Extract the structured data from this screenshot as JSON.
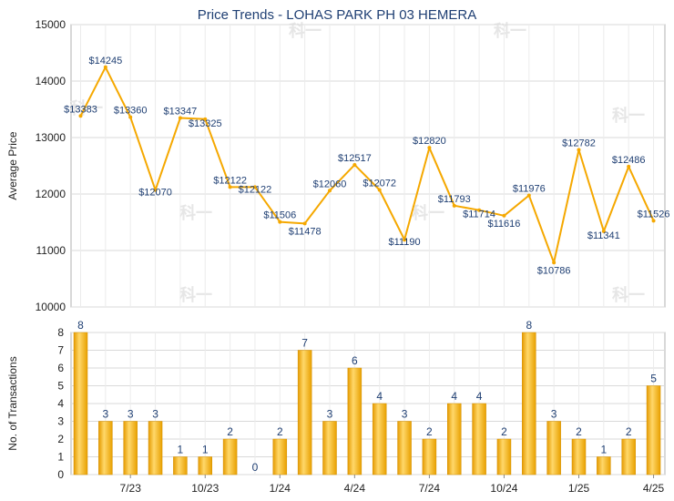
{
  "chart_data": [
    {
      "type": "line",
      "title": "Price Trends - LOHAS PARK PH 03 HEMERA",
      "ylabel": "Average Price",
      "ylim": [
        10000,
        15000
      ],
      "yticks": [
        10000,
        11000,
        12000,
        13000,
        14000,
        15000
      ],
      "grid": true,
      "color": "#f5a800",
      "series": [
        {
          "values": [
            13383,
            14245,
            13360,
            12070,
            13347,
            13325,
            12122,
            12122,
            11506,
            11478,
            12060,
            12517,
            12072,
            11190,
            12820,
            11793,
            11714,
            11616,
            11976,
            10786,
            12782,
            11341,
            12486,
            11526
          ],
          "labels": [
            "$13383",
            "$14245",
            "$13360",
            "$12070",
            "$13347",
            "$13325",
            "$12122",
            "$12122",
            "$11506",
            "$11478",
            "$12060",
            "$12517",
            "$12072",
            "$11190",
            "$12820",
            "$11793",
            "$11714",
            "$11616",
            "$11976",
            "$10786",
            "$12782",
            "$11341",
            "$12486",
            "$11526"
          ]
        }
      ]
    },
    {
      "type": "bar",
      "ylabel": "No. of Transactions",
      "ylim": [
        0,
        8
      ],
      "yticks": [
        0,
        1,
        2,
        3,
        4,
        5,
        6,
        7,
        8
      ],
      "grid": true,
      "color": "#f5a800",
      "values": [
        8,
        3,
        3,
        3,
        1,
        1,
        2,
        0,
        2,
        7,
        3,
        6,
        4,
        3,
        2,
        4,
        4,
        2,
        8,
        3,
        2,
        1,
        2,
        5
      ],
      "xtick_labels": [
        "7/23",
        "10/23",
        "1/24",
        "4/24",
        "7/24",
        "10/24",
        "1/25",
        "4/25"
      ]
    }
  ],
  "watermark": "科一"
}
